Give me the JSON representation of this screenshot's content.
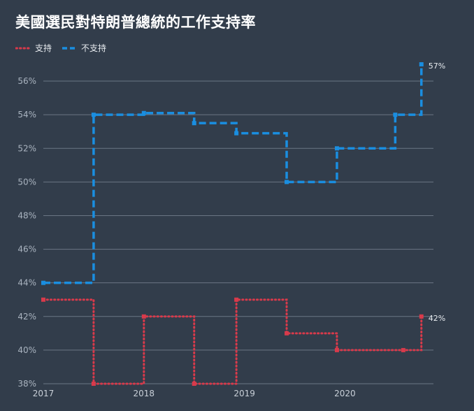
{
  "chart_data": {
    "type": "line",
    "step": true,
    "title": "美國選民對特朗普總統的工作支持率",
    "xlabel": "",
    "ylabel": "",
    "x_ticks": [
      "2017",
      "2018",
      "2019",
      "2020"
    ],
    "y_ticks": [
      "38%",
      "40%",
      "42%",
      "44%",
      "46%",
      "48%",
      "50%",
      "52%",
      "54%",
      "56%"
    ],
    "ylim": [
      38,
      57
    ],
    "xlim": [
      2017.0,
      2020.88
    ],
    "grid": true,
    "legend_position": "top-left",
    "series": [
      {
        "name": "支持",
        "color": "#d83a4b",
        "style": "dotted",
        "x": [
          2017.0,
          2017.5,
          2018.0,
          2018.5,
          2018.92,
          2019.42,
          2019.92,
          2020.58,
          2020.76
        ],
        "values": [
          43,
          38,
          42,
          38,
          43,
          41,
          40,
          40,
          42
        ],
        "end_label": "42%"
      },
      {
        "name": "不支持",
        "color": "#1a8ee0",
        "style": "dashed",
        "x": [
          2017.0,
          2017.5,
          2018.0,
          2018.5,
          2018.92,
          2019.42,
          2019.92,
          2020.5,
          2020.76
        ],
        "values": [
          44,
          54,
          54.1,
          53.5,
          52.9,
          50,
          52,
          54,
          57
        ],
        "end_label": "57%"
      }
    ]
  }
}
